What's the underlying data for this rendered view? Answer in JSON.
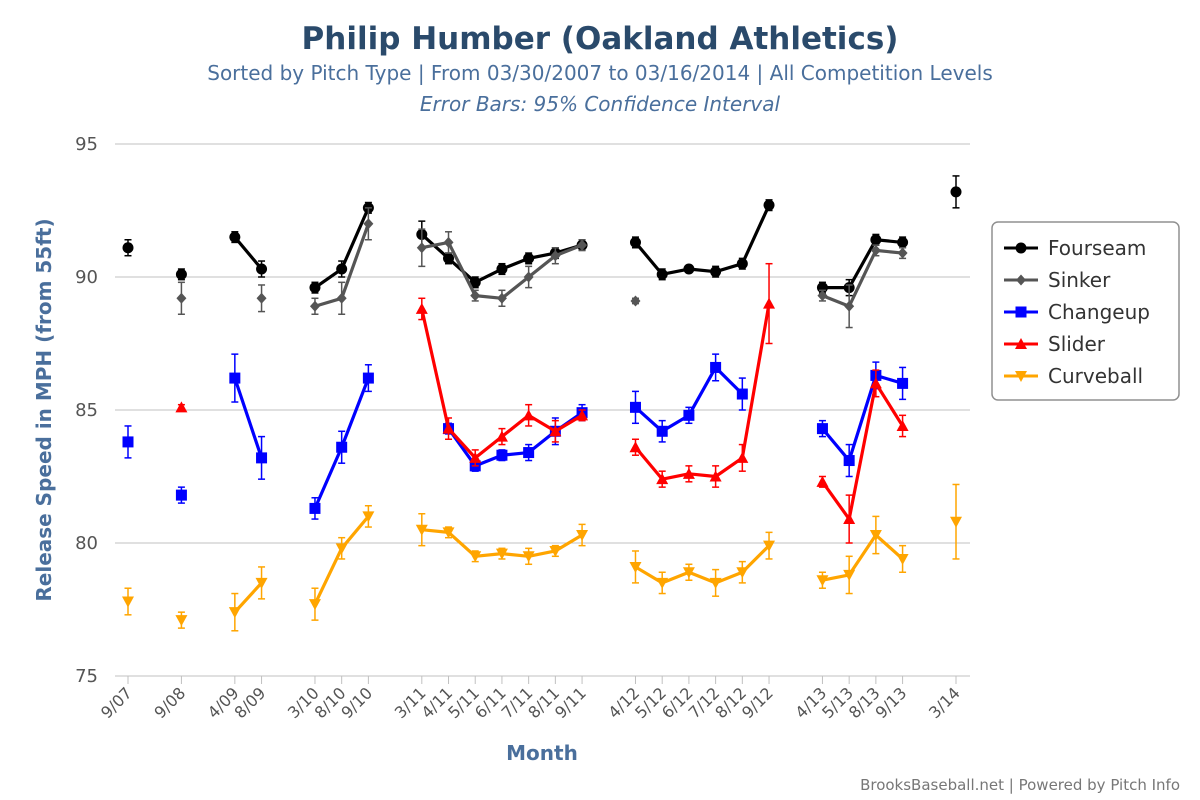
{
  "header": {
    "title": "Philip Humber (Oakland Athletics)",
    "subtitle": "Sorted by Pitch Type | From 03/30/2007 to 03/16/2014 | All Competition Levels",
    "subtitle2": "Error Bars: 95% Confidence Interval"
  },
  "credits": "BrooksBaseball.net | Powered by Pitch Info",
  "chart_data": {
    "type": "line",
    "title": "Philip Humber (Oakland Athletics)",
    "xlabel": "Month",
    "ylabel": "Release Speed in MPH (from 55ft)",
    "ylim": [
      75,
      95
    ],
    "yticks": [
      75,
      80,
      85,
      90,
      95
    ],
    "grid": true,
    "legend_position": "right",
    "categories": [
      "9/07",
      "9/08",
      "4/09",
      "8/09",
      "3/10",
      "8/10",
      "9/10",
      "3/11",
      "4/11",
      "5/11",
      "6/11",
      "7/11",
      "8/11",
      "9/11",
      "4/12",
      "5/12",
      "6/12",
      "7/12",
      "8/12",
      "9/12",
      "4/13",
      "5/13",
      "8/13",
      "9/13",
      "3/14"
    ],
    "gap_after": [
      "9/07",
      "9/08",
      "8/09",
      "9/10",
      "9/11",
      "9/12",
      "9/13"
    ],
    "series": [
      {
        "name": "Fourseam",
        "color": "#000000",
        "marker": "circle",
        "values": [
          91.1,
          90.1,
          91.5,
          90.3,
          89.6,
          90.3,
          92.6,
          91.6,
          90.7,
          89.8,
          90.3,
          90.7,
          90.9,
          91.2,
          91.3,
          90.1,
          90.3,
          90.2,
          90.5,
          92.7,
          89.6,
          89.6,
          91.4,
          91.3,
          93.2
        ],
        "err": [
          0.3,
          0.2,
          0.2,
          0.3,
          0.2,
          0.3,
          0.2,
          0.5,
          0.2,
          0.2,
          0.2,
          0.2,
          0.2,
          0.2,
          0.2,
          0.2,
          0.1,
          0.2,
          0.2,
          0.2,
          0.2,
          0.3,
          0.2,
          0.2,
          0.6
        ]
      },
      {
        "name": "Sinker",
        "color": "#555555",
        "marker": "diamond",
        "values": [
          null,
          89.2,
          null,
          89.2,
          88.9,
          89.2,
          92.0,
          91.1,
          91.3,
          89.3,
          89.2,
          90.0,
          90.8,
          91.2,
          89.1,
          null,
          null,
          null,
          null,
          null,
          89.3,
          88.9,
          91.0,
          90.9,
          null
        ],
        "err": [
          null,
          0.6,
          null,
          0.5,
          0.3,
          0.6,
          0.6,
          0.7,
          0.4,
          0.2,
          0.3,
          0.4,
          0.3,
          0.2,
          0.1,
          null,
          null,
          null,
          null,
          null,
          0.2,
          0.8,
          0.2,
          0.2,
          null
        ]
      },
      {
        "name": "Changeup",
        "color": "#0000ff",
        "marker": "square",
        "values": [
          83.8,
          81.8,
          86.2,
          83.2,
          81.3,
          83.6,
          86.2,
          null,
          84.3,
          82.9,
          83.3,
          83.4,
          84.2,
          84.9,
          85.1,
          84.2,
          84.8,
          86.6,
          85.6,
          null,
          84.3,
          83.1,
          86.3,
          86.0,
          null
        ],
        "err": [
          0.6,
          0.3,
          0.9,
          0.8,
          0.4,
          0.6,
          0.5,
          null,
          0.2,
          0.2,
          0.2,
          0.3,
          0.5,
          0.3,
          0.6,
          0.4,
          0.3,
          0.5,
          0.6,
          null,
          0.3,
          0.6,
          0.5,
          0.6,
          null
        ]
      },
      {
        "name": "Slider",
        "color": "#ff0000",
        "marker": "triangle-up",
        "values": [
          null,
          85.1,
          null,
          null,
          null,
          null,
          null,
          88.8,
          84.3,
          83.2,
          84.0,
          84.8,
          84.2,
          84.8,
          83.6,
          82.4,
          82.6,
          82.5,
          83.2,
          89.0,
          82.3,
          80.9,
          86.0,
          84.4,
          null
        ],
        "err": [
          null,
          0.1,
          null,
          null,
          null,
          null,
          null,
          0.4,
          0.4,
          0.3,
          0.3,
          0.4,
          0.4,
          0.2,
          0.3,
          0.3,
          0.3,
          0.4,
          0.5,
          1.5,
          0.2,
          0.9,
          0.5,
          0.4,
          null
        ]
      },
      {
        "name": "Curveball",
        "color": "#ffa500",
        "marker": "triangle-down",
        "values": [
          77.8,
          77.1,
          77.4,
          78.5,
          77.7,
          79.8,
          81.0,
          80.5,
          80.4,
          79.5,
          79.6,
          79.5,
          79.7,
          80.3,
          79.1,
          78.5,
          78.9,
          78.5,
          78.9,
          79.9,
          78.6,
          78.8,
          80.3,
          79.4,
          80.8
        ],
        "err": [
          0.5,
          0.3,
          0.7,
          0.6,
          0.6,
          0.4,
          0.4,
          0.6,
          0.2,
          0.2,
          0.2,
          0.3,
          0.2,
          0.4,
          0.6,
          0.4,
          0.3,
          0.5,
          0.4,
          0.5,
          0.3,
          0.7,
          0.7,
          0.5,
          1.4
        ]
      }
    ]
  }
}
